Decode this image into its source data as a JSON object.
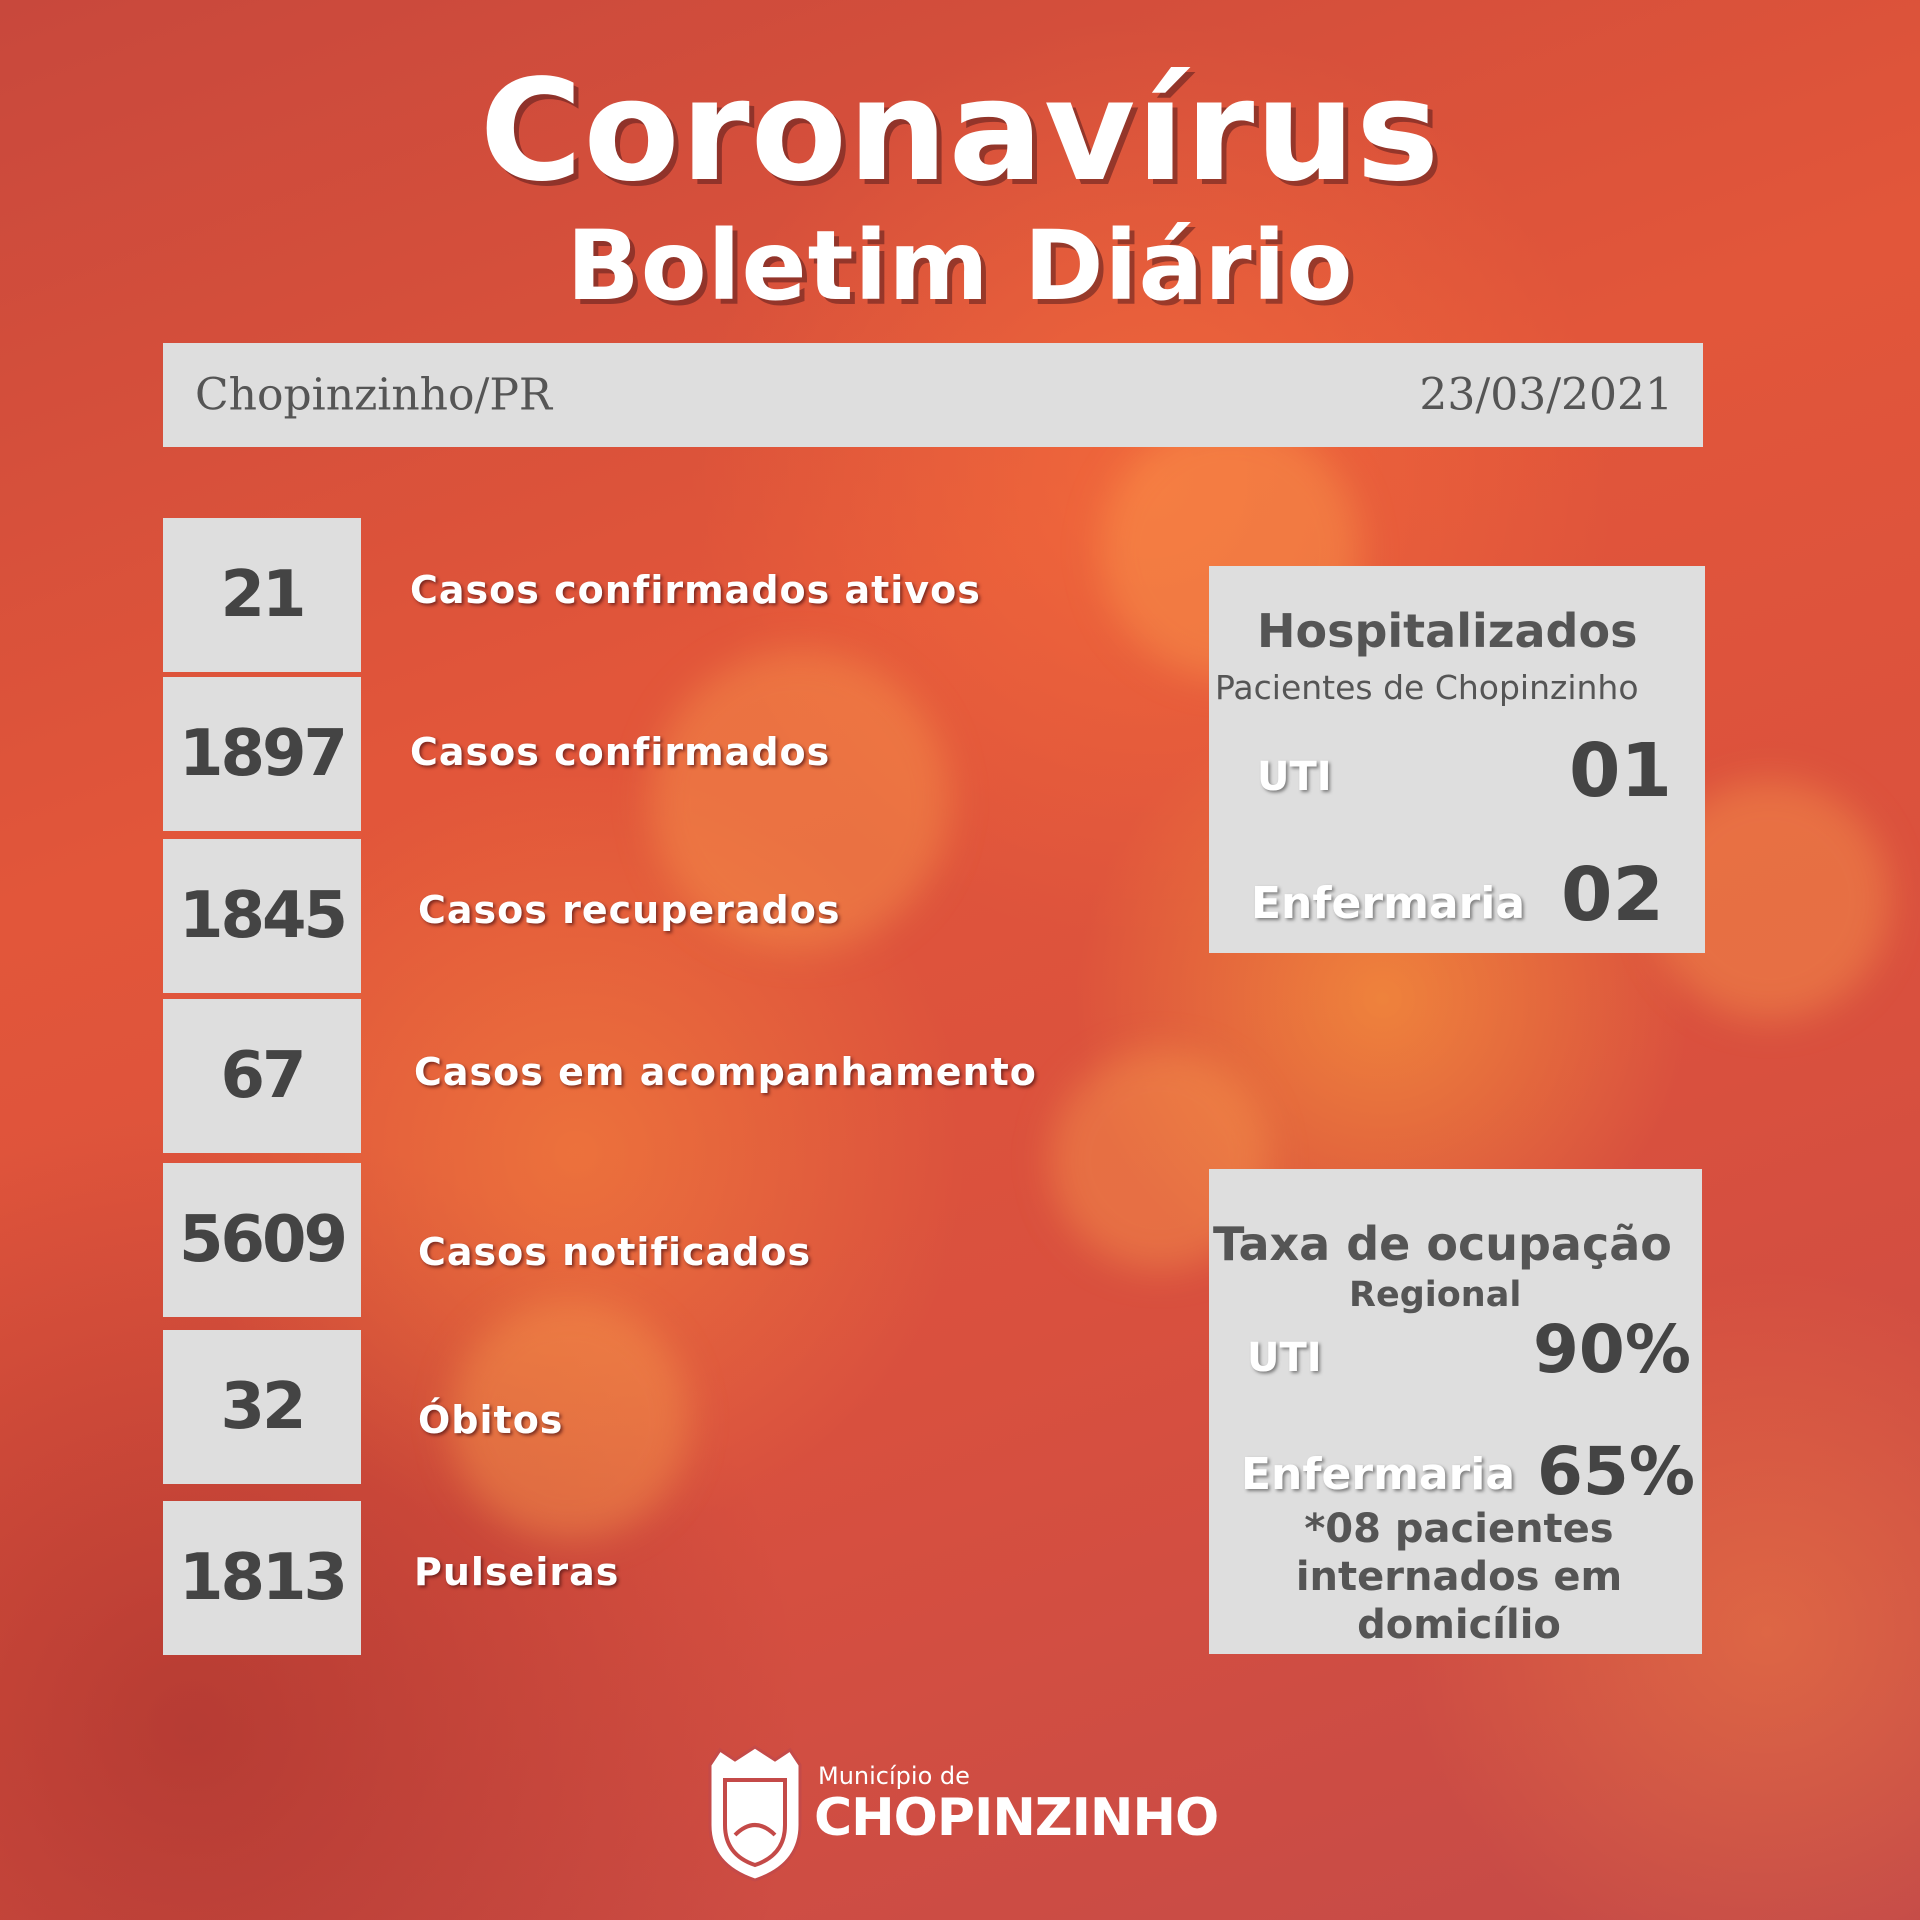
{
  "header": {
    "title": "Coronavírus",
    "subtitle": "Boletim Diário"
  },
  "info_bar": {
    "location": "Chopinzinho/PR",
    "date": "23/03/2021"
  },
  "stats": [
    {
      "value": "21",
      "label": "Casos confirmados ativos"
    },
    {
      "value": "1897",
      "label": "Casos confirmados"
    },
    {
      "value": "1845",
      "label": "Casos recuperados"
    },
    {
      "value": "67",
      "label": "Casos em acompanhamento"
    },
    {
      "value": "5609",
      "label": "Casos notificados"
    },
    {
      "value": "32",
      "label": "Óbitos"
    },
    {
      "value": "1813",
      "label": "Pulseiras"
    }
  ],
  "hospitalized": {
    "title": "Hospitalizados",
    "subtitle": "Pacientes de Chopinzinho",
    "rows": [
      {
        "label": "UTI",
        "value": "01"
      },
      {
        "label": "Enfermaria",
        "value": "02"
      }
    ]
  },
  "occupancy": {
    "title": "Taxa de ocupação",
    "subtitle": "Regional",
    "rows": [
      {
        "label": "UTI",
        "value": "90%"
      },
      {
        "label": "Enfermaria",
        "value": "65%"
      }
    ],
    "note": "*08 pacientes internados em domicílio"
  },
  "footer": {
    "prefix": "Município de",
    "name": "CHOPINZINHO"
  }
}
